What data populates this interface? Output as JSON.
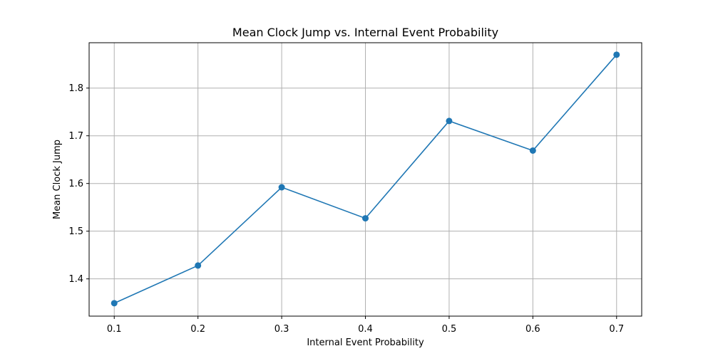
{
  "chart_data": {
    "type": "line",
    "title": "Mean Clock Jump vs. Internal Event Probability",
    "xlabel": "Internal Event Probability",
    "ylabel": "Mean Clock Jump",
    "x": [
      0.1,
      0.2,
      0.3,
      0.4,
      0.5,
      0.6,
      0.7
    ],
    "series": [
      {
        "values": [
          1.349,
          1.428,
          1.592,
          1.527,
          1.731,
          1.669,
          1.87
        ],
        "color": "#1f77b4",
        "marker": "circle"
      }
    ],
    "xlim": [
      0.07,
      0.73
    ],
    "ylim": [
      1.3219,
      1.8951
    ],
    "xticks": [
      "0.1",
      "0.2",
      "0.3",
      "0.4",
      "0.5",
      "0.6",
      "0.7"
    ],
    "xtick_values": [
      0.1,
      0.2,
      0.3,
      0.4,
      0.5,
      0.6,
      0.7
    ],
    "yticks": [
      "1.4",
      "1.5",
      "1.6",
      "1.7",
      "1.8"
    ],
    "ytick_values": [
      1.4,
      1.5,
      1.6,
      1.7,
      1.8
    ],
    "grid": true,
    "grid_color": "#b0b0b0"
  }
}
